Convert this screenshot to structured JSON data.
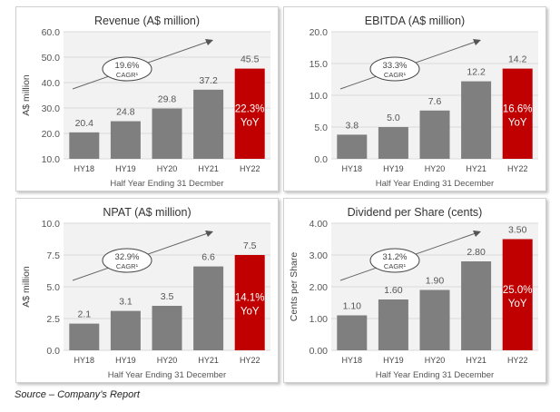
{
  "source": "Source – Company’s Report",
  "colors": {
    "bar": "#7f7f7f",
    "highlight": "#c00000",
    "plot_bg": "#f2f2f2",
    "grid": "#d9d9d9"
  },
  "chart_data": [
    {
      "type": "bar",
      "title": "Revenue (A$ million)",
      "ylabel": "A$ million",
      "xlabel": "Half Year Ending 31 Decmber",
      "categories": [
        "HY18",
        "HY19",
        "HY20",
        "HY21",
        "HY22"
      ],
      "values": [
        20.4,
        24.8,
        29.8,
        37.2,
        45.5
      ],
      "value_labels": [
        "20.4",
        "24.8",
        "29.8",
        "37.2",
        "45.5"
      ],
      "ylim": [
        10,
        60
      ],
      "yticks": [
        "10.0",
        "20.0",
        "30.0",
        "40.0",
        "50.0",
        "60.0"
      ],
      "ytick_values": [
        10,
        20,
        30,
        40,
        50,
        60
      ],
      "grid": true,
      "cagr": "19.6%",
      "cagr_label": "CAGR¹",
      "yoy": "22.3%",
      "yoy_label": "YoY"
    },
    {
      "type": "bar",
      "title": "EBITDA (A$ million)",
      "ylabel": "",
      "xlabel": "Half Year Ending 31 December",
      "categories": [
        "HY18",
        "HY19",
        "HY20",
        "HY21",
        "HY22"
      ],
      "values": [
        3.8,
        5.0,
        7.6,
        12.2,
        14.2
      ],
      "value_labels": [
        "3.8",
        "5.0",
        "7.6",
        "12.2",
        "14.2"
      ],
      "ylim": [
        0,
        20
      ],
      "yticks": [
        "0.0",
        "5.0",
        "10.0",
        "15.0",
        "20.0"
      ],
      "ytick_values": [
        0,
        5,
        10,
        15,
        20
      ],
      "grid": true,
      "cagr": "33.3%",
      "cagr_label": "CAGR¹",
      "yoy": "16.6%",
      "yoy_label": "YoY"
    },
    {
      "type": "bar",
      "title": "NPAT (A$ million)",
      "ylabel": "A$ million",
      "xlabel": "Half Year Ending 31 December",
      "categories": [
        "HY18",
        "HY19",
        "HY20",
        "HY21",
        "HY22"
      ],
      "values": [
        2.1,
        3.1,
        3.5,
        6.6,
        7.5
      ],
      "value_labels": [
        "2.1",
        "3.1",
        "3.5",
        "6.6",
        "7.5"
      ],
      "ylim": [
        0,
        10
      ],
      "yticks": [
        "0.0",
        "2.5",
        "5.0",
        "7.5",
        "10.0"
      ],
      "ytick_values": [
        0,
        2.5,
        5,
        7.5,
        10
      ],
      "grid": true,
      "cagr": "32.9%",
      "cagr_label": "CAGR¹",
      "yoy": "14.1%",
      "yoy_label": "YoY"
    },
    {
      "type": "bar",
      "title": "Dividend per Share (cents)",
      "ylabel": "Cents per Share",
      "xlabel": "Half Year Ending 31 December",
      "categories": [
        "HY18",
        "HY19",
        "HY20",
        "HY21",
        "HY22"
      ],
      "values": [
        1.1,
        1.6,
        1.9,
        2.8,
        3.5
      ],
      "value_labels": [
        "1.10",
        "1.60",
        "1.90",
        "2.80",
        "3.50"
      ],
      "ylim": [
        0,
        4
      ],
      "yticks": [
        "0.00",
        "1.00",
        "2.00",
        "3.00",
        "4.00"
      ],
      "ytick_values": [
        0,
        1,
        2,
        3,
        4
      ],
      "grid": true,
      "cagr": "31.2%",
      "cagr_label": "CAGR¹",
      "yoy": "25.0%",
      "yoy_label": "YoY"
    }
  ]
}
